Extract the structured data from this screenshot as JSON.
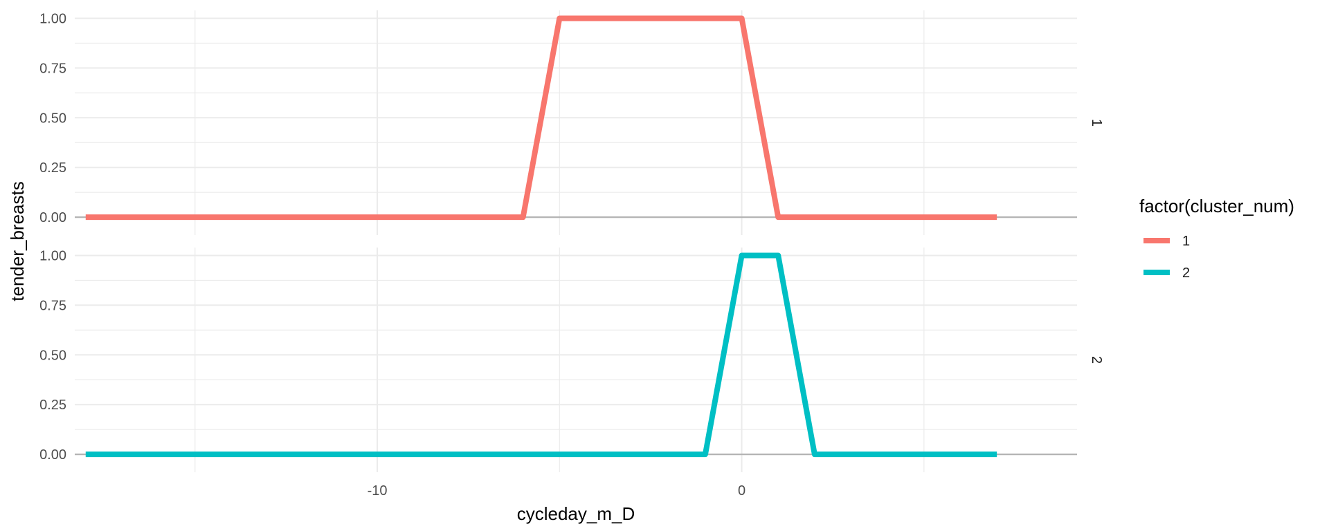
{
  "chart_data": {
    "type": "line",
    "xlabel": "cycleday_m_D",
    "ylabel": "tender_breasts",
    "xlim": [
      -18.3,
      9.2
    ],
    "ylim": [
      -0.09,
      1.04
    ],
    "x_ticks": [
      -10,
      0
    ],
    "x_tick_labels": [
      "-10",
      "0"
    ],
    "y_ticks": [
      0,
      0.25,
      0.5,
      0.75,
      1
    ],
    "y_tick_labels": [
      "0.00",
      "0.25",
      "0.50",
      "0.75",
      "1.00"
    ],
    "facet_labels": [
      "1",
      "2"
    ],
    "legend": {
      "title": "factor(cluster_num)",
      "placement": "right",
      "entries": [
        "1",
        "2"
      ]
    },
    "grid": true,
    "series": [
      {
        "name": "1",
        "color": "#F8766D",
        "x": [
          -18,
          -6,
          -5,
          0,
          1,
          7
        ],
        "y": [
          0,
          0,
          1,
          1,
          0,
          0
        ]
      },
      {
        "name": "2",
        "color": "#00BFC4",
        "x": [
          -18,
          -1,
          0,
          1,
          2,
          7
        ],
        "y": [
          0,
          0,
          1,
          1,
          0,
          0
        ]
      }
    ]
  }
}
